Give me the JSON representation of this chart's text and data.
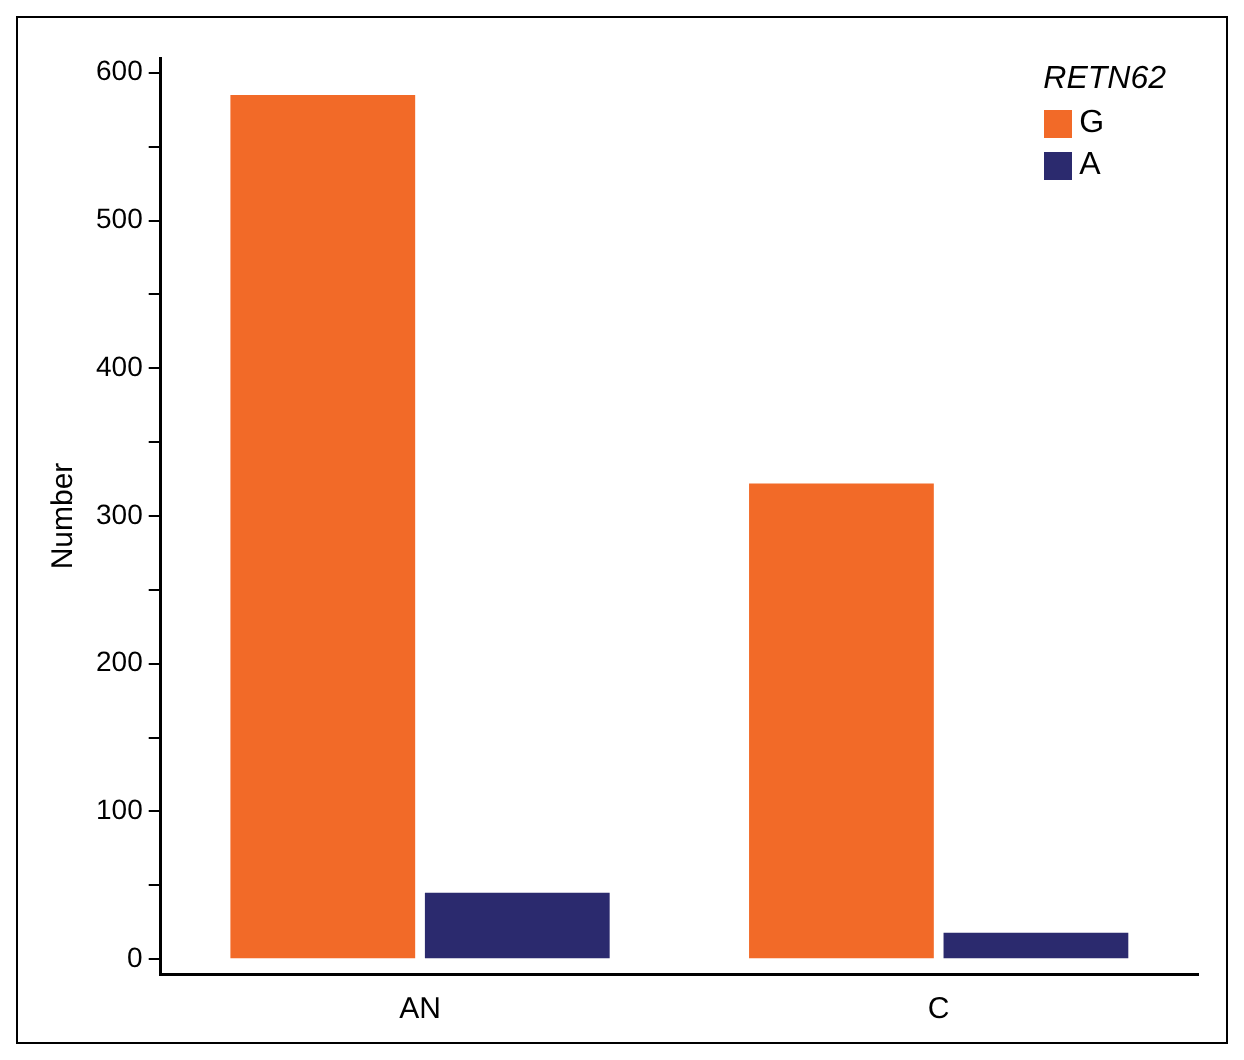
{
  "chart_data": {
    "type": "bar",
    "ylabel": "Number",
    "legend_title": "RETN62",
    "categories": [
      "AN",
      "C"
    ],
    "series": [
      {
        "name": "G",
        "color": "#f26a28",
        "values": [
          585,
          322
        ]
      },
      {
        "name": "A",
        "color": "#2b2a6e",
        "values": [
          45,
          18
        ]
      }
    ],
    "ylim": [
      -10,
      610
    ],
    "yticks": [
      0,
      {
        "value": 50,
        "label": null
      },
      100,
      {
        "value": 150,
        "label": null
      },
      200,
      {
        "value": 250,
        "label": null
      },
      300,
      {
        "value": 350,
        "label": null
      },
      400,
      {
        "value": 450,
        "label": null
      },
      500,
      {
        "value": 550,
        "label": null
      },
      600
    ],
    "grid": false,
    "legend": "top right"
  }
}
